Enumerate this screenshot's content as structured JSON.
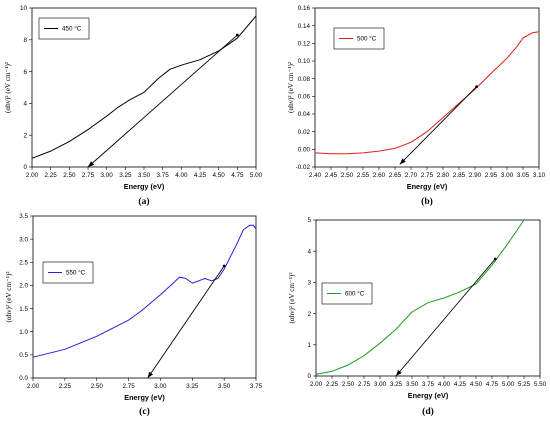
{
  "chart_data": [
    {
      "type": "line",
      "caption": "(a)",
      "xlabel": "Energy (eV)",
      "ylabel": "(αhν)² (eV cm⁻¹)²",
      "xlim": [
        2.0,
        5.0
      ],
      "ylim": [
        0,
        10
      ],
      "xticks": [
        2.0,
        2.25,
        2.5,
        2.75,
        3.0,
        3.25,
        3.5,
        3.75,
        4.0,
        4.25,
        4.5,
        4.75,
        5.0
      ],
      "xtick_labels": [
        "2.00",
        "2.25",
        "2.50",
        "2.75",
        "3.00",
        "3.25",
        "3.50",
        "3.75",
        "4.00",
        "4.25",
        "4.50",
        "4.75",
        "5.00"
      ],
      "yticks": [
        0,
        2,
        4,
        6,
        8,
        10
      ],
      "ytick_labels": [
        "0",
        "2",
        "4",
        "6",
        "8",
        "10"
      ],
      "legend_position": "top-left",
      "series": [
        {
          "name": "450 °C",
          "color": "#000000",
          "x": [
            2.0,
            2.25,
            2.5,
            2.75,
            3.0,
            3.15,
            3.3,
            3.5,
            3.7,
            3.85,
            4.0,
            4.25,
            4.5,
            4.75,
            5.0
          ],
          "y": [
            0.55,
            1.0,
            1.6,
            2.35,
            3.2,
            3.75,
            4.2,
            4.7,
            5.6,
            6.15,
            6.4,
            6.75,
            7.3,
            8.1,
            9.5
          ]
        }
      ],
      "fit_line": {
        "x": [
          2.75,
          4.75
        ],
        "y": [
          0,
          8.3
        ]
      },
      "fit_color": "#000000"
    },
    {
      "type": "line",
      "caption": "(b)",
      "xlabel": "Energy (eV)",
      "ylabel": "(αhν)² (eV cm⁻¹)²",
      "xlim": [
        2.4,
        3.1
      ],
      "ylim": [
        -0.02,
        0.16
      ],
      "xticks": [
        2.4,
        2.45,
        2.5,
        2.55,
        2.6,
        2.65,
        2.7,
        2.75,
        2.8,
        2.85,
        2.9,
        2.95,
        3.0,
        3.05,
        3.1
      ],
      "xtick_labels": [
        "2.40",
        "2.45",
        "2.50",
        "2.55",
        "2.60",
        "2.65",
        "2.70",
        "2.75",
        "2.80",
        "2.85",
        "2.90",
        "2.95",
        "3.00",
        "3.05",
        "3.10"
      ],
      "yticks": [
        -0.02,
        0,
        0.02,
        0.04,
        0.06,
        0.08,
        0.1,
        0.12,
        0.14,
        0.16
      ],
      "ytick_labels": [
        "-0.02",
        "0.00",
        "0.02",
        "0.04",
        "0.06",
        "0.08",
        "0.10",
        "0.12",
        "0.14",
        "0.16"
      ],
      "legend_position": "top-left",
      "series": [
        {
          "name": "500 °C",
          "color": "#e0201a",
          "x": [
            2.4,
            2.45,
            2.5,
            2.55,
            2.6,
            2.65,
            2.7,
            2.75,
            2.8,
            2.85,
            2.9,
            2.95,
            3.0,
            3.03,
            3.05,
            3.08,
            3.1
          ],
          "y": [
            -0.004,
            -0.005,
            -0.005,
            -0.004,
            -0.002,
            0.001,
            0.008,
            0.02,
            0.036,
            0.052,
            0.068,
            0.086,
            0.103,
            0.116,
            0.126,
            0.132,
            0.133
          ]
        }
      ],
      "fit_line": {
        "x": [
          2.665,
          2.905
        ],
        "y": [
          -0.017,
          0.071
        ]
      },
      "fit_color": "#000000"
    },
    {
      "type": "line",
      "caption": "(c)",
      "xlabel": "Energy (eV)",
      "ylabel": "(αhν)² (eV cm⁻¹)²",
      "xlim": [
        2.0,
        3.75
      ],
      "ylim": [
        0,
        3.5
      ],
      "xticks": [
        2.0,
        2.25,
        2.5,
        2.75,
        3.0,
        3.25,
        3.5,
        3.75
      ],
      "xtick_labels": [
        "2.00",
        "2.25",
        "2.50",
        "2.75",
        "3.00",
        "3.25",
        "3.50",
        "3.75"
      ],
      "yticks": [
        0,
        0.5,
        1.0,
        1.5,
        2.0,
        2.5,
        3.0,
        3.5
      ],
      "ytick_labels": [
        "0.0",
        "0.5",
        "1.0",
        "1.5",
        "2.0",
        "2.5",
        "3.0",
        "3.5"
      ],
      "legend_position": "top-left",
      "series": [
        {
          "name": "550 °C",
          "color": "#2020d8",
          "x": [
            2.0,
            2.25,
            2.5,
            2.75,
            2.85,
            3.0,
            3.1,
            3.15,
            3.2,
            3.25,
            3.3,
            3.35,
            3.4,
            3.45,
            3.5,
            3.6,
            3.65,
            3.7,
            3.73,
            3.75
          ],
          "y": [
            0.45,
            0.62,
            0.9,
            1.25,
            1.45,
            1.8,
            2.05,
            2.18,
            2.15,
            2.05,
            2.1,
            2.15,
            2.1,
            2.15,
            2.35,
            2.9,
            3.2,
            3.3,
            3.3,
            3.22
          ]
        }
      ],
      "fit_line": {
        "x": [
          2.9,
          3.5
        ],
        "y": [
          0,
          2.42
        ]
      },
      "fit_color": "#000000"
    },
    {
      "type": "line",
      "caption": "(d)",
      "xlabel": "Energy (eV)",
      "ylabel": "(αhν)² (eV cm⁻¹)²",
      "xlim": [
        2.0,
        5.5
      ],
      "ylim": [
        0,
        5
      ],
      "xticks": [
        2.0,
        2.25,
        2.5,
        2.75,
        3.0,
        3.25,
        3.5,
        3.75,
        4.0,
        4.25,
        4.5,
        4.75,
        5.0,
        5.25,
        5.5
      ],
      "xtick_labels": [
        "2.00",
        "2.25",
        "2.50",
        "2.75",
        "3.00",
        "3.25",
        "3.50",
        "3.75",
        "4.00",
        "4.25",
        "4.50",
        "4.75",
        "5.00",
        "5.25",
        "5.50"
      ],
      "yticks": [
        0,
        1,
        2,
        3,
        4,
        5
      ],
      "ytick_labels": [
        "0",
        "1",
        "2",
        "3",
        "4",
        "5"
      ],
      "legend_position": "top-left",
      "series": [
        {
          "name": "600 °C",
          "color": "#1f9b1f",
          "x": [
            2.0,
            2.25,
            2.5,
            2.75,
            3.0,
            3.25,
            3.5,
            3.75,
            4.0,
            4.25,
            4.5,
            4.75,
            5.0,
            5.25
          ],
          "y": [
            0.05,
            0.15,
            0.35,
            0.65,
            1.05,
            1.5,
            2.05,
            2.35,
            2.5,
            2.7,
            2.95,
            3.55,
            4.25,
            5.0
          ]
        }
      ],
      "fit_line": {
        "x": [
          3.25,
          4.8
        ],
        "y": [
          0,
          3.75
        ]
      },
      "fit_color": "#000000"
    }
  ]
}
